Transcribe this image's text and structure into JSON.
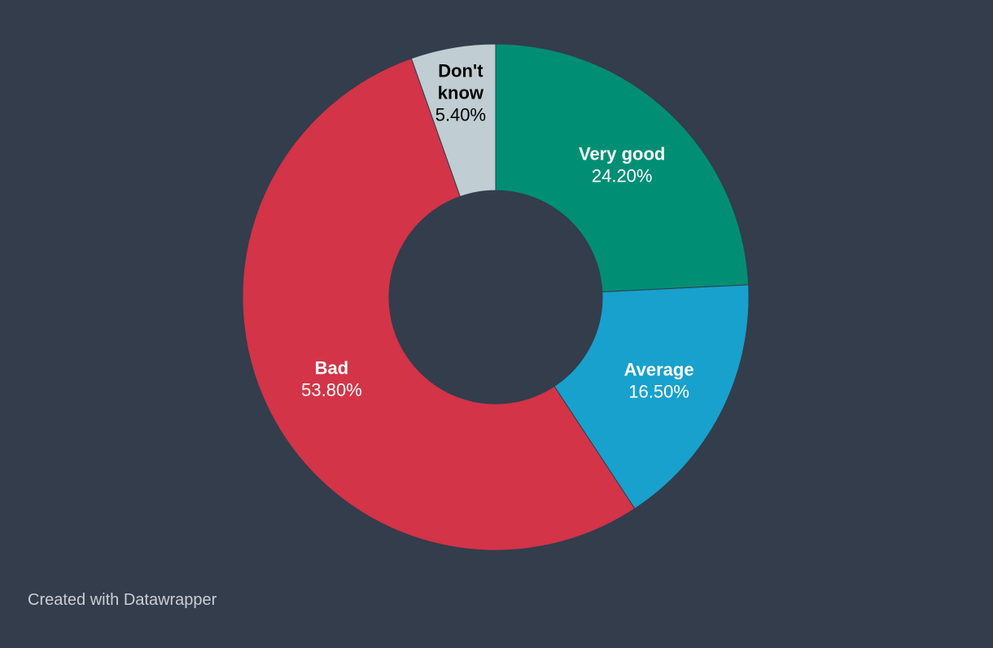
{
  "chart_data": {
    "type": "pie",
    "variant": "donut",
    "slices": [
      {
        "label": "Very good",
        "label_lines": [
          "Very good"
        ],
        "value": 24.2,
        "display": "24.20%",
        "color": "#008f74",
        "text_color": "#ffffff"
      },
      {
        "label": "Average",
        "label_lines": [
          "Average"
        ],
        "value": 16.5,
        "display": "16.50%",
        "color": "#18a1cd",
        "text_color": "#ffffff"
      },
      {
        "label": "Bad",
        "label_lines": [
          "Bad"
        ],
        "value": 53.8,
        "display": "53.80%",
        "color": "#d33447",
        "text_color": "#ffffff"
      },
      {
        "label": "Don't know",
        "label_lines": [
          "Don't",
          "know"
        ],
        "value": 5.4,
        "display": "5.40%",
        "color": "#c0cdd2",
        "text_color": "#000000"
      }
    ],
    "start": "12 o'clock",
    "direction": "clockwise"
  },
  "footer": {
    "credit": "Created with Datawrapper"
  },
  "colors": {
    "background": "#333d4c",
    "slice_border": "#333d4c"
  }
}
